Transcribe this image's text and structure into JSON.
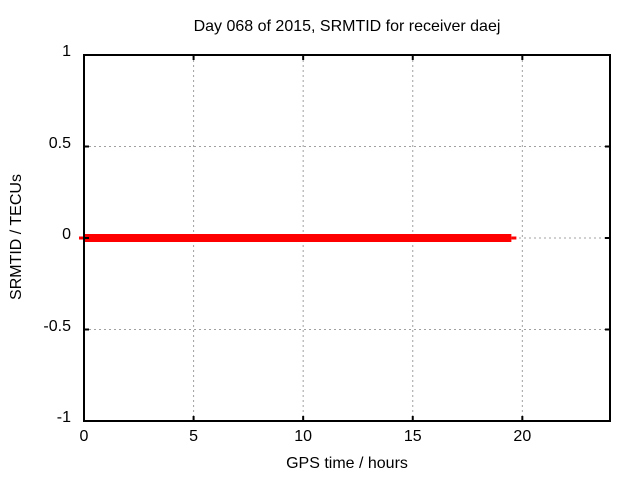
{
  "chart_data": {
    "type": "line",
    "title": "Day 068 of 2015, SRMTID for receiver daej",
    "xlabel": "GPS time / hours",
    "ylabel": "SRMTID / TECUs",
    "xlim": [
      0,
      24
    ],
    "ylim": [
      -1,
      1
    ],
    "xticks": {
      "values": [
        0,
        5,
        10,
        15,
        20
      ],
      "labels": [
        "0",
        "5",
        "10",
        "15",
        "20"
      ]
    },
    "yticks": {
      "values": [
        -1,
        -0.5,
        0,
        0.5,
        1
      ],
      "labels": [
        "-1",
        "-0.5",
        "0",
        "0.5",
        "1"
      ]
    },
    "grid": "dashed",
    "legend": "none",
    "series": [
      {
        "name": "SRMTID",
        "color": "#ff0000",
        "linewidth": 8,
        "x": [
          0,
          19.5
        ],
        "y": [
          0,
          0
        ]
      }
    ],
    "colors": {
      "background": "#ffffff",
      "border": "#000000",
      "grid": "#a0a0a0",
      "text": "#000000"
    }
  }
}
